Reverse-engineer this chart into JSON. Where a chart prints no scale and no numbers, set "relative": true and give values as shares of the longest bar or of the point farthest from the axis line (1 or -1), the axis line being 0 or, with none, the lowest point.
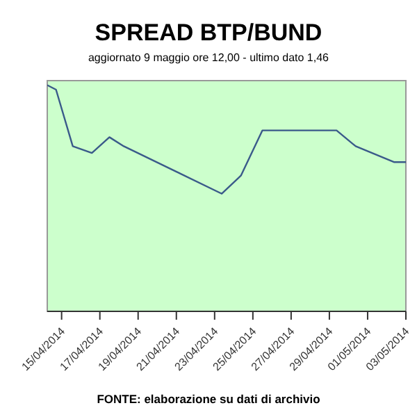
{
  "chart_data": {
    "type": "line",
    "title": "SPREAD BTP/BUND",
    "subtitle": "aggiornato 9 maggio ore 12,00 - ultimo dato 1,46",
    "annotations": [
      "FONTE: elaborazione su dati di archivio"
    ],
    "relative": true,
    "x": [
      "2014-04-14T06:00",
      "2014-04-14T17:00",
      "2014-04-15T14:00",
      "2014-04-16T14:00",
      "2014-04-17T12:00",
      "2014-04-18T06:00",
      "2014-04-23T09:00",
      "2014-04-24T09:00",
      "2014-04-25T12:00",
      "2014-04-29T09:00",
      "2014-04-30T09:00",
      "2014-05-02T09:00",
      "2014-05-03T00:00"
    ],
    "series": [
      {
        "color": "#3a5a8a",
        "values": [
          1,
          0.98,
          0.73,
          0.7,
          0.77,
          0.73,
          0.52,
          0.6,
          0.8,
          0.8,
          0.73,
          0.66,
          0.66
        ]
      }
    ],
    "xlim": [
      "2014-04-14T06:00",
      "2014-05-03T00:00"
    ],
    "xticks": [
      {
        "value": "2014-04-15",
        "label": "15/04/2014"
      },
      {
        "value": "2014-04-17",
        "label": "17/04/2014"
      },
      {
        "value": "2014-04-19",
        "label": "19/04/2014"
      },
      {
        "value": "2014-04-21",
        "label": "21/04/2014"
      },
      {
        "value": "2014-04-23",
        "label": "23/04/2014"
      },
      {
        "value": "2014-04-25",
        "label": "25/04/2014"
      },
      {
        "value": "2014-04-27",
        "label": "27/04/2014"
      },
      {
        "value": "2014-04-29",
        "label": "29/04/2014"
      },
      {
        "value": "2014-05-01",
        "label": "01/05/2014"
      },
      {
        "value": "2014-05-03",
        "label": "03/05/2014"
      }
    ],
    "marker": "none"
  }
}
